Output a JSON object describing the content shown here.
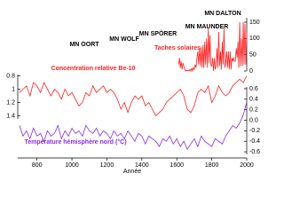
{
  "chart_data": [
    {
      "type": "line",
      "title": "Taches solaires",
      "color": "#ff2020",
      "annotations": [
        "MN OORT",
        "MN WOLF",
        "MN SPÖRER",
        "MN MAUNDER",
        "MN DALTON"
      ],
      "x": [
        1610,
        1615,
        1620,
        1625,
        1630,
        1635,
        1640,
        1645,
        1650,
        1655,
        1660,
        1665,
        1670,
        1675,
        1680,
        1685,
        1690,
        1695,
        1700,
        1705,
        1710,
        1715,
        1720,
        1725,
        1730,
        1735,
        1740,
        1745,
        1750,
        1755,
        1760,
        1765,
        1770,
        1775,
        1780,
        1785,
        1790,
        1795,
        1800,
        1805,
        1810,
        1815,
        1820,
        1825,
        1830,
        1835,
        1840,
        1845,
        1850,
        1855,
        1860,
        1865,
        1870,
        1875,
        1880,
        1885,
        1890,
        1895,
        1900,
        1905,
        1910,
        1915,
        1920,
        1925,
        1930,
        1935,
        1940,
        1945,
        1950,
        1955,
        1960,
        1965,
        1970,
        1975,
        1980,
        1985,
        1990,
        1995,
        2000
      ],
      "values": [
        20,
        40,
        10,
        30,
        5,
        25,
        15,
        5,
        0,
        2,
        0,
        3,
        0,
        5,
        0,
        8,
        0,
        10,
        5,
        20,
        10,
        40,
        60,
        20,
        70,
        15,
        75,
        10,
        80,
        10,
        90,
        20,
        100,
        10,
        130,
        25,
        110,
        20,
        15,
        40,
        0,
        40,
        5,
        15,
        70,
        10,
        120,
        15,
        60,
        5,
        90,
        20,
        130,
        10,
        30,
        60,
        10,
        60,
        5,
        60,
        5,
        40,
        30,
        40,
        30,
        30,
        70,
        40,
        90,
        10,
        150,
        15,
        100,
        15,
        150,
        20,
        145,
        20,
        120
      ],
      "xlim": [
        690,
        2000
      ],
      "ylim": [
        0,
        150
      ],
      "yticks": [
        0,
        50,
        100,
        150
      ]
    },
    {
      "type": "line",
      "title": "Concentration relative Be-10",
      "color": "#ff2020",
      "x": [
        700,
        720,
        740,
        760,
        780,
        800,
        820,
        840,
        860,
        880,
        900,
        920,
        940,
        960,
        980,
        1000,
        1020,
        1040,
        1060,
        1080,
        1100,
        1120,
        1140,
        1160,
        1180,
        1200,
        1220,
        1240,
        1260,
        1280,
        1300,
        1320,
        1340,
        1360,
        1380,
        1400,
        1420,
        1440,
        1460,
        1480,
        1500,
        1520,
        1540,
        1560,
        1580,
        1600,
        1620,
        1640,
        1660,
        1680,
        1700,
        1720,
        1740,
        1760,
        1780,
        1800,
        1820,
        1840,
        1860,
        1880,
        1900,
        1920,
        1940,
        1960,
        1980,
        2000
      ],
      "values": [
        1.05,
        1.0,
        0.95,
        1.1,
        0.9,
        0.95,
        1.05,
        0.9,
        1.0,
        1.1,
        1.0,
        1.05,
        1.15,
        1.0,
        1.1,
        1.05,
        1.15,
        1.25,
        1.2,
        1.05,
        1.1,
        0.95,
        1.05,
        1.0,
        0.95,
        1.05,
        1.0,
        1.05,
        1.15,
        1.3,
        1.2,
        1.35,
        1.2,
        1.1,
        1.15,
        1.1,
        1.25,
        1.2,
        1.3,
        1.4,
        1.35,
        1.3,
        1.2,
        1.15,
        1.1,
        1.05,
        1.0,
        1.1,
        1.3,
        1.35,
        1.25,
        1.05,
        1.0,
        1.05,
        0.95,
        1.2,
        1.1,
        0.95,
        1.05,
        1.1,
        1.05,
        0.95,
        0.9,
        0.85,
        0.9,
        0.8
      ],
      "xlim": [
        690,
        2000
      ],
      "ylim": [
        1.5,
        0.7
      ],
      "yticks": [
        0.8,
        1,
        1.2,
        1.4
      ]
    },
    {
      "type": "line",
      "title": "Température hémisphère nord (°C)",
      "color": "#8a2be2",
      "x": [
        700,
        720,
        740,
        760,
        780,
        800,
        820,
        840,
        860,
        880,
        900,
        920,
        940,
        960,
        980,
        1000,
        1020,
        1040,
        1060,
        1080,
        1100,
        1120,
        1140,
        1160,
        1180,
        1200,
        1220,
        1240,
        1260,
        1280,
        1300,
        1320,
        1340,
        1360,
        1380,
        1400,
        1420,
        1440,
        1460,
        1480,
        1500,
        1520,
        1540,
        1560,
        1580,
        1600,
        1620,
        1640,
        1660,
        1680,
        1700,
        1720,
        1740,
        1760,
        1780,
        1800,
        1820,
        1840,
        1860,
        1880,
        1900,
        1920,
        1940,
        1960,
        1980,
        2000
      ],
      "values": [
        -0.1,
        -0.3,
        -0.2,
        -0.35,
        -0.15,
        -0.3,
        -0.25,
        -0.4,
        -0.2,
        -0.3,
        -0.25,
        -0.1,
        -0.35,
        -0.2,
        -0.3,
        -0.15,
        -0.25,
        -0.2,
        -0.3,
        -0.1,
        -0.2,
        -0.25,
        -0.15,
        -0.3,
        -0.2,
        -0.25,
        -0.35,
        -0.2,
        -0.3,
        -0.25,
        -0.35,
        -0.2,
        -0.3,
        -0.4,
        -0.25,
        -0.3,
        -0.45,
        -0.3,
        -0.35,
        -0.4,
        -0.5,
        -0.35,
        -0.4,
        -0.3,
        -0.45,
        -0.35,
        -0.5,
        -0.4,
        -0.55,
        -0.45,
        -0.35,
        -0.5,
        -0.3,
        -0.4,
        -0.45,
        -0.5,
        -0.35,
        -0.4,
        -0.45,
        -0.3,
        -0.2,
        -0.1,
        -0.15,
        -0.05,
        0.1,
        0.35
      ],
      "xlim": [
        690,
        2000
      ],
      "xticks": [
        800,
        1000,
        1200,
        1400,
        1600,
        1800,
        2000
      ],
      "xlabel": "Année",
      "ylim": [
        -0.7,
        0.7
      ],
      "yticks": [
        0.6,
        0.4,
        0.2,
        {
          "value": 0,
          "label": "0.0"
        },
        -0.2,
        -0.4,
        -0.6
      ]
    }
  ]
}
